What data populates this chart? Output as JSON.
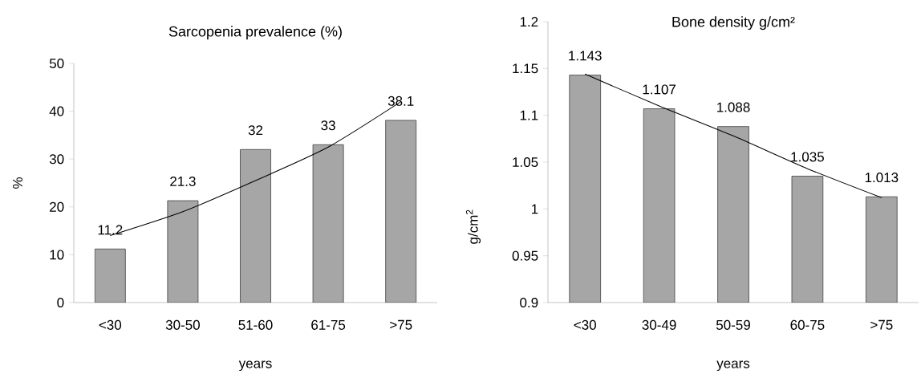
{
  "chart_data": [
    {
      "type": "bar",
      "title": "Sarcopenia prevalence (%)",
      "xlabel": "years",
      "ylabel": "%",
      "categories": [
        "<30",
        "30-50",
        "51-60",
        "61-75",
        ">75"
      ],
      "series": [
        {
          "color": "#a6a6a6",
          "values": [
            11.2,
            21.3,
            32,
            33,
            38.1
          ],
          "value_labels": [
            "11.2",
            "21.3",
            "32",
            "33",
            "38.1"
          ]
        },
        {
          "type": "line",
          "color": "#000000",
          "values": [
            14,
            19,
            25.5,
            32.5,
            42
          ]
        }
      ],
      "ylim": [
        0,
        50
      ],
      "yticks": [
        0,
        10,
        20,
        30,
        40,
        50
      ]
    },
    {
      "type": "bar",
      "title": "Bone density g/cm²",
      "xlabel": "years",
      "ylabel": "g/cm$^{2}$",
      "categories": [
        "<30",
        "30-49",
        "50-59",
        "60-75",
        ">75"
      ],
      "series": [
        {
          "color": "#a6a6a6",
          "values": [
            1.143,
            1.107,
            1.088,
            1.035,
            1.013
          ],
          "value_labels": [
            "1.143",
            "1.107",
            "1.088",
            "1.035",
            "1.013"
          ]
        },
        {
          "type": "line",
          "color": "#000000",
          "values": [
            1.144,
            1.11,
            1.078,
            1.043,
            1.012
          ]
        }
      ],
      "ylim": [
        0.9,
        1.2
      ],
      "yticks": [
        0.9,
        0.95,
        1,
        1.05,
        1.1,
        1.15,
        1.2
      ]
    }
  ]
}
